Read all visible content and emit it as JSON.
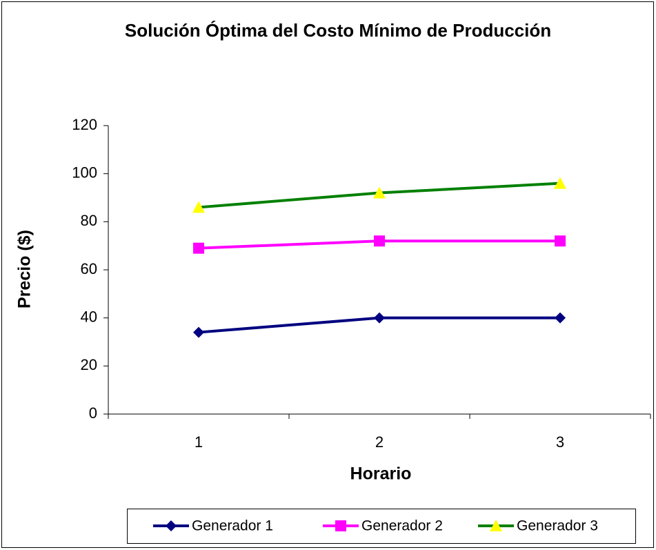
{
  "chart_data": {
    "type": "line",
    "title": "Solución Óptima del Costo Mínimo de Producción",
    "xlabel": "Horario",
    "ylabel": "Precio ($)",
    "categories": [
      "1",
      "2",
      "3"
    ],
    "series": [
      {
        "name": "Generador 1",
        "color": "#000080",
        "marker": "diamond",
        "marker_color": "#000080",
        "values": [
          34,
          40,
          40
        ]
      },
      {
        "name": "Generador 2",
        "color": "#FF00FF",
        "marker": "square",
        "marker_color": "#FF00FF",
        "values": [
          69,
          72,
          72
        ]
      },
      {
        "name": "Generador 3",
        "color": "#008000",
        "marker": "triangle",
        "marker_color": "#FFFF00",
        "values": [
          86,
          92,
          96
        ]
      }
    ],
    "ylim": [
      0,
      120
    ],
    "yticks": [
      0,
      20,
      40,
      60,
      80,
      100,
      120
    ],
    "grid": false,
    "legend": "bottom"
  }
}
